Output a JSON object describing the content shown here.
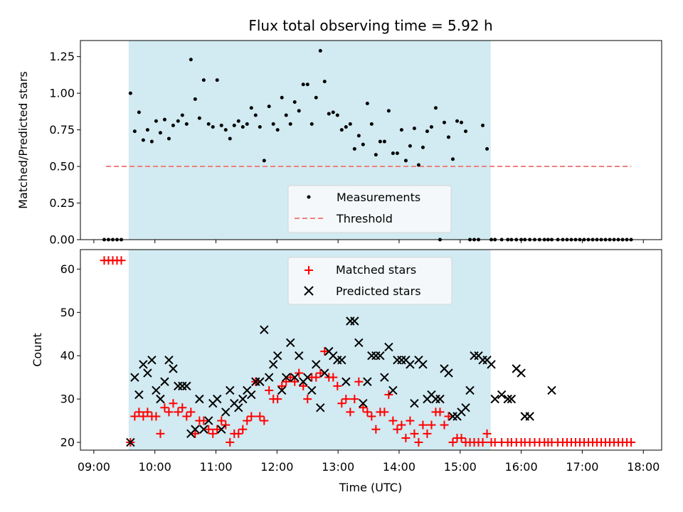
{
  "chart_data": {
    "title": "Flux total observing time = 5.92 h",
    "xlabel": "Time (UTC)",
    "x_unit": "hours UTC",
    "xlim": [
      8.78,
      18.3
    ],
    "xticks": [
      9,
      10,
      11,
      12,
      13,
      14,
      15,
      16,
      17,
      18
    ],
    "xtick_labels": [
      "09:00",
      "10:00",
      "11:00",
      "12:00",
      "13:00",
      "14:00",
      "15:00",
      "16:00",
      "17:00",
      "18:00"
    ],
    "highlight_span": [
      9.57,
      15.5
    ],
    "highlight_color": "#add8e6",
    "panels": [
      {
        "type": "scatter",
        "ylabel": "Matched/Predicted stars",
        "ylim": [
          0,
          1.36
        ],
        "yticks": [
          "0.00",
          "0.25",
          "0.50",
          "0.75",
          "1.00",
          "1.25"
        ],
        "legend_position": "lower-center",
        "series": [
          {
            "name": "Measurements",
            "marker": "dot",
            "color": "#000000",
            "x": [
              9.17,
              9.24,
              9.31,
              9.38,
              9.45,
              9.6,
              9.67,
              9.74,
              9.81,
              9.88,
              9.95,
              10.02,
              10.09,
              10.16,
              10.23,
              10.3,
              10.38,
              10.45,
              10.52,
              10.59,
              10.66,
              10.73,
              10.8,
              10.88,
              10.95,
              11.02,
              11.09,
              11.16,
              11.23,
              11.3,
              11.37,
              11.44,
              11.51,
              11.58,
              11.65,
              11.72,
              11.79,
              11.87,
              11.94,
              12.01,
              12.08,
              12.15,
              12.22,
              12.29,
              12.36,
              12.43,
              12.5,
              12.57,
              12.64,
              12.71,
              12.78,
              12.85,
              12.92,
              12.99,
              13.06,
              13.13,
              13.2,
              13.27,
              13.34,
              13.41,
              13.48,
              13.55,
              13.62,
              13.69,
              13.76,
              13.83,
              13.9,
              13.97,
              14.04,
              14.11,
              14.18,
              14.25,
              14.32,
              14.39,
              14.46,
              14.53,
              14.6,
              14.67,
              14.74,
              14.81,
              14.88,
              14.95,
              15.02,
              15.09,
              15.16,
              15.23,
              15.3,
              15.37,
              15.44,
              15.51,
              15.57,
              15.68,
              15.78,
              15.84,
              15.92,
              16.0,
              16.06,
              16.14,
              16.22,
              16.3,
              16.38,
              16.44,
              16.5,
              16.6,
              16.68,
              16.75,
              16.82,
              16.89,
              16.96,
              17.03,
              17.1,
              17.17,
              17.24,
              17.31,
              17.38,
              17.45,
              17.52,
              17.59,
              17.66,
              17.73,
              17.8
            ],
            "y": [
              0,
              0,
              0,
              0,
              0,
              1.0,
              0.74,
              0.87,
              0.68,
              0.75,
              0.67,
              0.81,
              0.73,
              0.82,
              0.69,
              0.78,
              0.81,
              0.85,
              0.79,
              1.23,
              0.96,
              0.83,
              1.09,
              0.79,
              0.77,
              1.09,
              0.78,
              0.75,
              0.69,
              0.78,
              0.81,
              0.77,
              0.79,
              0.9,
              0.85,
              0.77,
              0.54,
              0.91,
              0.79,
              0.75,
              0.97,
              0.85,
              0.79,
              0.94,
              0.88,
              1.06,
              1.06,
              0.79,
              0.97,
              1.29,
              1.08,
              0.86,
              0.87,
              0.85,
              0.75,
              0.77,
              0.79,
              0.62,
              0.71,
              0.65,
              0.93,
              0.79,
              0.58,
              0.67,
              0.67,
              0.88,
              0.59,
              0.59,
              0.75,
              0.54,
              0.64,
              0.76,
              0.51,
              0.63,
              0.74,
              0.77,
              0.9,
              0,
              0.8,
              0.7,
              0.55,
              0.81,
              0.8,
              0.74,
              0,
              0,
              0,
              0.78,
              0.62,
              0,
              0,
              0,
              0,
              0,
              0,
              0,
              0,
              0,
              0,
              0,
              0,
              0,
              0,
              0,
              0,
              0,
              0,
              0,
              0,
              0,
              0,
              0,
              0,
              0,
              0,
              0,
              0,
              0,
              0,
              0,
              0
            ]
          },
          {
            "name": "Threshold",
            "marker": "dashed-line",
            "color": "#f08080",
            "x": [
              9.2,
              17.8
            ],
            "y": [
              0.5,
              0.5
            ]
          }
        ]
      },
      {
        "type": "scatter",
        "ylabel": "Count",
        "ylim": [
          18.2,
          64.5
        ],
        "yticks": [
          "20",
          "30",
          "40",
          "50",
          "60"
        ],
        "legend_position": "top-center",
        "series": [
          {
            "name": "Matched stars",
            "marker": "plus",
            "color": "#ff0000",
            "x": [
              9.17,
              9.24,
              9.31,
              9.38,
              9.45,
              9.6,
              9.67,
              9.74,
              9.81,
              9.88,
              9.95,
              10.02,
              10.09,
              10.16,
              10.23,
              10.3,
              10.38,
              10.45,
              10.52,
              10.59,
              10.66,
              10.73,
              10.8,
              10.88,
              10.95,
              11.02,
              11.09,
              11.16,
              11.23,
              11.3,
              11.37,
              11.44,
              11.51,
              11.58,
              11.65,
              11.72,
              11.79,
              11.87,
              11.94,
              12.01,
              12.08,
              12.15,
              12.22,
              12.29,
              12.36,
              12.43,
              12.5,
              12.57,
              12.64,
              12.71,
              12.78,
              12.85,
              12.92,
              12.99,
              13.06,
              13.13,
              13.2,
              13.27,
              13.34,
              13.41,
              13.48,
              13.55,
              13.62,
              13.69,
              13.76,
              13.83,
              13.9,
              13.97,
              14.04,
              14.11,
              14.18,
              14.25,
              14.32,
              14.39,
              14.46,
              14.53,
              14.6,
              14.67,
              14.74,
              14.81,
              14.88,
              14.95,
              15.02,
              15.09,
              15.16,
              15.23,
              15.3,
              15.37,
              15.44,
              15.51,
              15.57,
              15.68,
              15.78,
              15.84,
              15.92,
              16.0,
              16.06,
              16.14,
              16.22,
              16.3,
              16.38,
              16.44,
              16.5,
              16.6,
              16.68,
              16.75,
              16.82,
              16.89,
              16.96,
              17.03,
              17.1,
              17.17,
              17.24,
              17.31,
              17.38,
              17.45,
              17.52,
              17.59,
              17.66,
              17.73,
              17.8
            ],
            "y": [
              62,
              62,
              62,
              62,
              62,
              20,
              26,
              27,
              26,
              27,
              26,
              26,
              22,
              28,
              27,
              29,
              27,
              28,
              26,
              27,
              22,
              25,
              25,
              23,
              22,
              23,
              25,
              24,
              20,
              22,
              22,
              23,
              25,
              26,
              34,
              26,
              25,
              32,
              30,
              30,
              33,
              34,
              35,
              34,
              36,
              33,
              30,
              35,
              35,
              36,
              41,
              35,
              35,
              33,
              29,
              30,
              27,
              30,
              34,
              28,
              27,
              26,
              23,
              27,
              27,
              31,
              25,
              23,
              24,
              21,
              25,
              22,
              20,
              24,
              22,
              24,
              27,
              27,
              24,
              26,
              20,
              21,
              21,
              20,
              20,
              20,
              20,
              20,
              22,
              20,
              20,
              20,
              20,
              20,
              20,
              20,
              20,
              20,
              20,
              20,
              20,
              20,
              20,
              20,
              20,
              20,
              20,
              20,
              20,
              20,
              20,
              20,
              20,
              20,
              20,
              20,
              20,
              20,
              20,
              20,
              20
            ]
          },
          {
            "name": "Predicted stars",
            "marker": "x",
            "color": "#000000",
            "x": [
              9.6,
              9.67,
              9.74,
              9.81,
              9.88,
              9.95,
              10.02,
              10.09,
              10.16,
              10.23,
              10.3,
              10.38,
              10.45,
              10.52,
              10.59,
              10.66,
              10.73,
              10.8,
              10.88,
              10.95,
              11.02,
              11.09,
              11.16,
              11.23,
              11.3,
              11.37,
              11.44,
              11.51,
              11.58,
              11.65,
              11.72,
              11.79,
              11.87,
              11.94,
              12.01,
              12.08,
              12.15,
              12.22,
              12.29,
              12.36,
              12.43,
              12.5,
              12.57,
              12.64,
              12.71,
              12.78,
              12.85,
              12.92,
              12.99,
              13.06,
              13.13,
              13.2,
              13.27,
              13.34,
              13.41,
              13.48,
              13.55,
              13.62,
              13.69,
              13.76,
              13.83,
              13.9,
              13.97,
              14.04,
              14.11,
              14.18,
              14.25,
              14.32,
              14.39,
              14.46,
              14.53,
              14.6,
              14.67,
              14.74,
              14.81,
              14.88,
              14.95,
              15.02,
              15.09,
              15.16,
              15.23,
              15.3,
              15.37,
              15.44,
              15.51,
              15.57,
              15.68,
              15.78,
              15.84,
              15.92,
              16.0,
              16.06,
              16.14,
              16.5
            ],
            "y": [
              20,
              35,
              31,
              38,
              36,
              39,
              32,
              30,
              34,
              39,
              37,
              33,
              33,
              33,
              22,
              23,
              30,
              23,
              25,
              29,
              30,
              23,
              27,
              32,
              29,
              28,
              30,
              32,
              31,
              34,
              34,
              46,
              35,
              38,
              40,
              32,
              35,
              43,
              35,
              40,
              34,
              35,
              32,
              38,
              28,
              36,
              41,
              40,
              39,
              39,
              34,
              48,
              48,
              43,
              29,
              34,
              40,
              40,
              40,
              35,
              42,
              32,
              39,
              39,
              39,
              38,
              29,
              39,
              38,
              30,
              31,
              30,
              30,
              37,
              36,
              26,
              26,
              27,
              28,
              32,
              40,
              40,
              39,
              39,
              38,
              30,
              31,
              30,
              30,
              37,
              36,
              26,
              26,
              32
            ]
          }
        ]
      }
    ]
  }
}
